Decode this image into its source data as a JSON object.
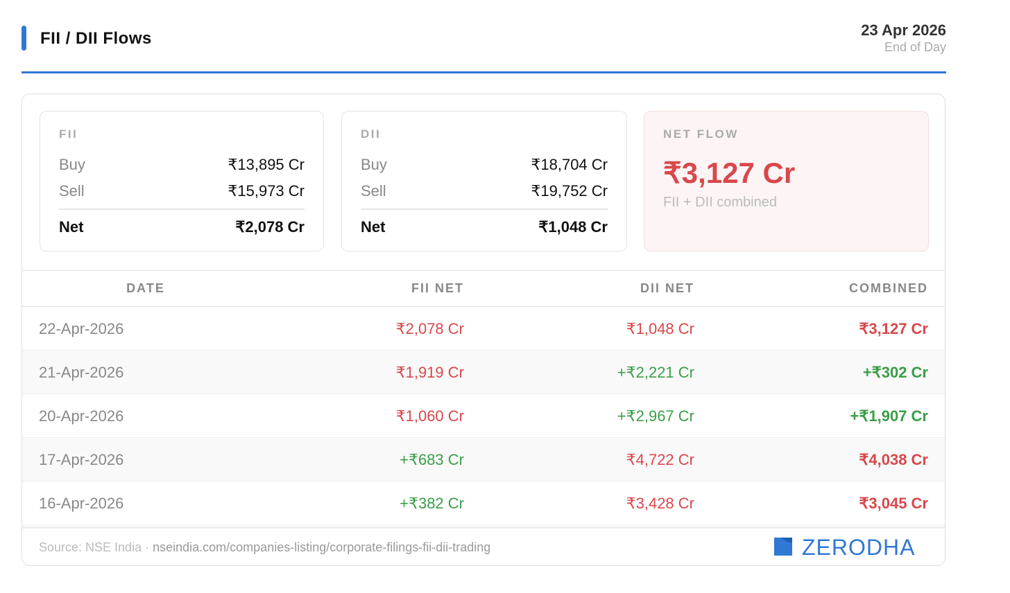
{
  "header": {
    "title": "FII / DII Flows",
    "date": "23 Apr 2026",
    "subtitle": "End of Day"
  },
  "summary": {
    "fii": {
      "label": "FII",
      "rows": [
        [
          "Buy",
          "₹13,895 Cr"
        ],
        [
          "Sell",
          "₹15,973 Cr"
        ]
      ],
      "net_label": "Net",
      "net": "₹2,078 Cr"
    },
    "dii": {
      "label": "DII",
      "rows": [
        [
          "Buy",
          "₹18,704 Cr"
        ],
        [
          "Sell",
          "₹19,752 Cr"
        ]
      ],
      "net_label": "Net",
      "net": "₹1,048 Cr"
    },
    "net_flow": {
      "label": "NET FLOW",
      "value": "₹3,127 Cr",
      "note": "FII + DII combined"
    }
  },
  "table": {
    "headers": [
      "DATE",
      "FII NET",
      "DII NET",
      "COMBINED"
    ],
    "rows": [
      [
        "22-Apr-2026",
        "₹2,078 Cr",
        "₹1,048 Cr",
        "₹3,127 Cr"
      ],
      [
        "21-Apr-2026",
        "₹1,919 Cr",
        "+₹2,221 Cr",
        "+₹302 Cr"
      ],
      [
        "20-Apr-2026",
        "₹1,060 Cr",
        "+₹2,967 Cr",
        "+₹1,907 Cr"
      ],
      [
        "17-Apr-2026",
        "+₹683 Cr",
        "₹4,722 Cr",
        "₹4,038 Cr"
      ],
      [
        "16-Apr-2026",
        "+₹382 Cr",
        "₹3,428 Cr",
        "₹3,045 Cr"
      ]
    ]
  },
  "footer": {
    "source": "Source: NSE India",
    "separator": "·",
    "link": "nseindia.com/companies-listing/corporate-filings-fii-dii-trading",
    "brand": "ZERODHA"
  }
}
